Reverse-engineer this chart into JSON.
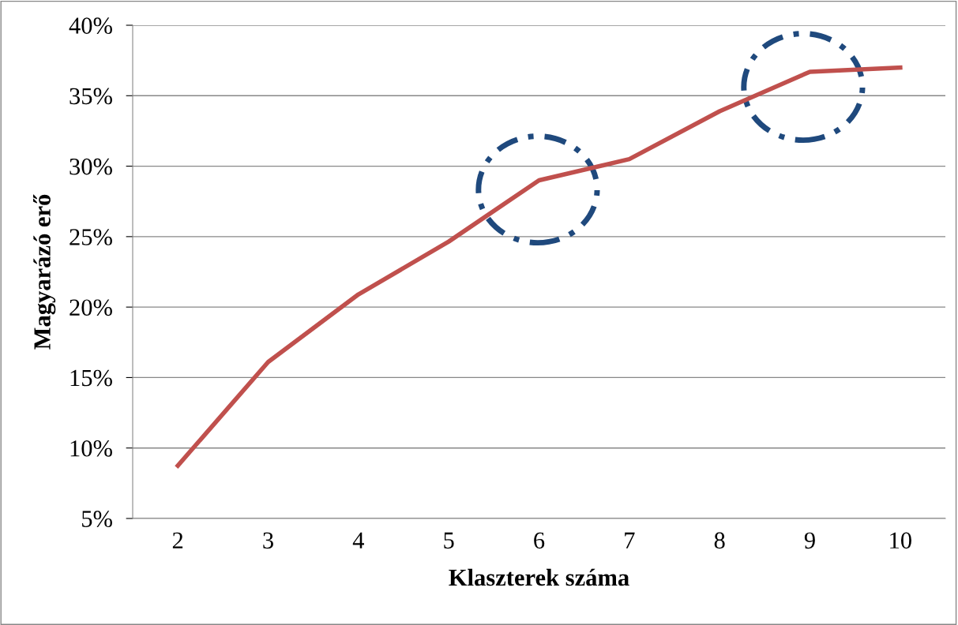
{
  "chart_data": {
    "type": "line",
    "xlabel": "Klaszterek száma",
    "ylabel": "Magyarázó erő",
    "categories": [
      "2",
      "3",
      "4",
      "5",
      "6",
      "7",
      "8",
      "9",
      "10"
    ],
    "series": [
      {
        "color": "#c0504d",
        "values": [
          8.75,
          16.1,
          20.9,
          24.65,
          29.0,
          30.5,
          33.9,
          36.7,
          37.0
        ]
      }
    ],
    "ylim": [
      5,
      40
    ],
    "yticks": [
      {
        "value": 5,
        "label": "5%"
      },
      {
        "value": 10,
        "label": "10%"
      },
      {
        "value": 15,
        "label": "15%"
      },
      {
        "value": 20,
        "label": "20%"
      },
      {
        "value": 25,
        "label": "25%"
      },
      {
        "value": 30,
        "label": "30%"
      },
      {
        "value": 35,
        "label": "35%"
      },
      {
        "value": 40,
        "label": "40%"
      }
    ],
    "grid": "y",
    "marker": "none",
    "line_style": "solid"
  }
}
